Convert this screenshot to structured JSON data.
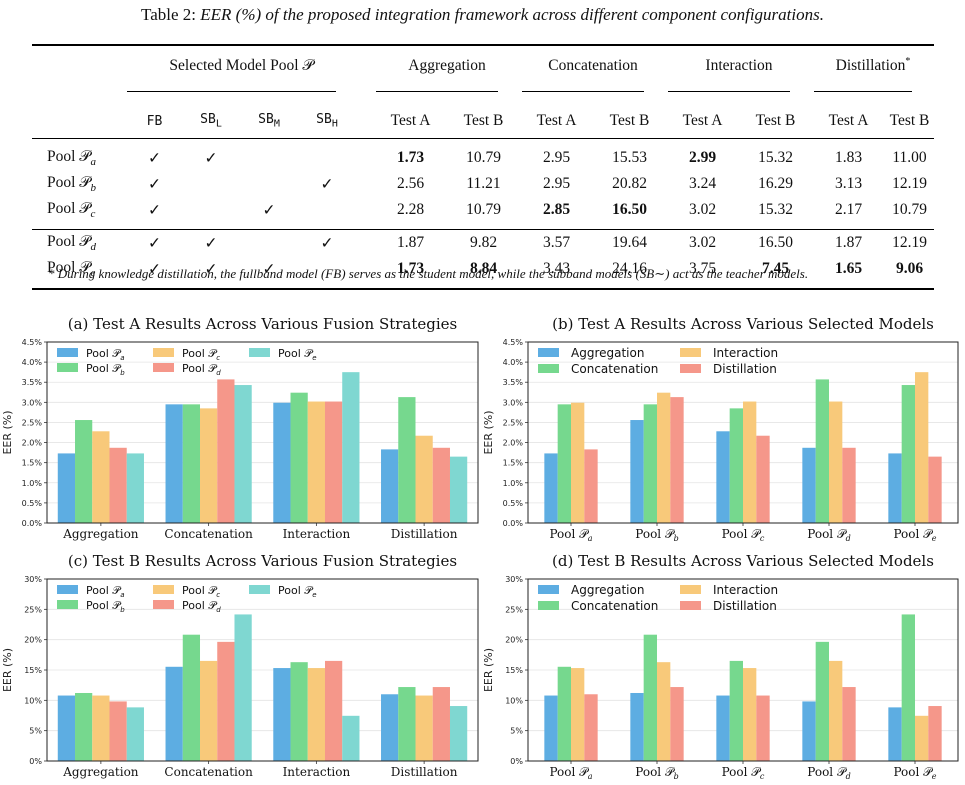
{
  "caption": {
    "label": "Table 2:",
    "text": "EER (%) of the proposed integration framework across different component configurations."
  },
  "table": {
    "pool_header": "Selected Model Pool 𝒫",
    "group_headers": [
      "Aggregation",
      "Concatenation",
      "Interaction",
      "Distillation"
    ],
    "distillation_mark": "*",
    "model_cols": [
      "FB",
      "SBL",
      "SBM",
      "SBH"
    ],
    "model_cols_display": [
      {
        "base": "FB",
        "sub": ""
      },
      {
        "base": "SB",
        "sub": "L"
      },
      {
        "base": "SB",
        "sub": "M"
      },
      {
        "base": "SB",
        "sub": "H"
      }
    ],
    "test_cols": [
      "Test A",
      "Test B",
      "Test A",
      "Test B",
      "Test A",
      "Test B",
      "Test A",
      "Test B"
    ],
    "check": "✓",
    "rows": [
      {
        "name": "Pool 𝒫",
        "sub": "a",
        "checks": [
          true,
          true,
          false,
          false
        ],
        "values": [
          "1.73",
          "10.79",
          "2.95",
          "15.53",
          "2.99",
          "15.32",
          "1.83",
          "11.00"
        ],
        "bold": [
          true,
          false,
          false,
          false,
          true,
          false,
          false,
          false
        ]
      },
      {
        "name": "Pool 𝒫",
        "sub": "b",
        "checks": [
          true,
          false,
          false,
          true
        ],
        "values": [
          "2.56",
          "11.21",
          "2.95",
          "20.82",
          "3.24",
          "16.29",
          "3.13",
          "12.19"
        ],
        "bold": [
          false,
          false,
          false,
          false,
          false,
          false,
          false,
          false
        ]
      },
      {
        "name": "Pool 𝒫",
        "sub": "c",
        "checks": [
          true,
          false,
          true,
          false
        ],
        "values": [
          "2.28",
          "10.79",
          "2.85",
          "16.50",
          "3.02",
          "15.32",
          "2.17",
          "10.79"
        ],
        "bold": [
          false,
          false,
          true,
          true,
          false,
          false,
          false,
          false
        ]
      },
      {
        "name": "Pool 𝒫",
        "sub": "d",
        "checks": [
          true,
          true,
          false,
          true
        ],
        "values": [
          "1.87",
          "9.82",
          "3.57",
          "19.64",
          "3.02",
          "16.50",
          "1.87",
          "12.19"
        ],
        "bold": [
          false,
          false,
          false,
          false,
          false,
          false,
          false,
          false
        ]
      },
      {
        "name": "Pool 𝒫",
        "sub": "e",
        "checks": [
          true,
          true,
          true,
          false
        ],
        "values": [
          "1.73",
          "8.84",
          "3.43",
          "24.16",
          "3.75",
          "7.45",
          "1.65",
          "9.06"
        ],
        "bold": [
          true,
          true,
          false,
          false,
          false,
          true,
          true,
          true
        ]
      }
    ]
  },
  "footnote": "* During knowledge distillation, the fullband model (FB) serves as the student model, while the subband models (SB∼) act as the teacher models.",
  "colors": {
    "pool_a": "#5dade2",
    "pool_b": "#76d88e",
    "pool_c": "#f8c97a",
    "pool_d": "#f5978a",
    "pool_e": "#7fd7d1",
    "aggregation": "#5dade2",
    "concatenation": "#76d88e",
    "interaction": "#f8c97a",
    "distillation": "#f5978a"
  },
  "chart_data": [
    {
      "type": "bar",
      "title": "(a) Test A Results Across Various Fusion Strategies",
      "ylabel": "EER (%)",
      "ylim": [
        0,
        4.5
      ],
      "yticks": [
        "0.0%",
        "0.5%",
        "1.0%",
        "1.5%",
        "2.0%",
        "2.5%",
        "3.0%",
        "3.5%",
        "4.0%",
        "4.5%"
      ],
      "categories": [
        "Aggregation",
        "Concatenation",
        "Interaction",
        "Distillation"
      ],
      "legend_position": "top-left",
      "series": [
        {
          "name": "Pool 𝒫",
          "sub": "a",
          "values": [
            1.73,
            2.95,
            2.99,
            1.83
          ]
        },
        {
          "name": "Pool 𝒫",
          "sub": "b",
          "values": [
            2.56,
            2.95,
            3.24,
            3.13
          ]
        },
        {
          "name": "Pool 𝒫",
          "sub": "c",
          "values": [
            2.28,
            2.85,
            3.02,
            2.17
          ]
        },
        {
          "name": "Pool 𝒫",
          "sub": "d",
          "values": [
            1.87,
            3.57,
            3.02,
            1.87
          ]
        },
        {
          "name": "Pool 𝒫",
          "sub": "e",
          "values": [
            1.73,
            3.43,
            3.75,
            1.65
          ]
        }
      ]
    },
    {
      "type": "bar",
      "title": "(b) Test A Results Across Various Selected Models",
      "ylabel": "EER (%)",
      "ylim": [
        0,
        4.5
      ],
      "yticks": [
        "0.0%",
        "0.5%",
        "1.0%",
        "1.5%",
        "2.0%",
        "2.5%",
        "3.0%",
        "3.5%",
        "4.0%",
        "4.5%"
      ],
      "categories": [
        "Pool 𝒫a",
        "Pool 𝒫b",
        "Pool 𝒫c",
        "Pool 𝒫d",
        "Pool 𝒫e"
      ],
      "legend_position": "top-left",
      "series": [
        {
          "name": "Aggregation",
          "values": [
            1.73,
            2.56,
            2.28,
            1.87,
            1.73
          ]
        },
        {
          "name": "Concatenation",
          "values": [
            2.95,
            2.95,
            2.85,
            3.57,
            3.43
          ]
        },
        {
          "name": "Interaction",
          "values": [
            2.99,
            3.24,
            3.02,
            3.02,
            3.75
          ]
        },
        {
          "name": "Distillation",
          "values": [
            1.83,
            3.13,
            2.17,
            1.87,
            1.65
          ]
        }
      ]
    },
    {
      "type": "bar",
      "title": "(c) Test B Results Across Various Fusion Strategies",
      "ylabel": "EER (%)",
      "ylim": [
        0,
        30
      ],
      "yticks": [
        "0%",
        "5%",
        "10%",
        "15%",
        "20%",
        "25%",
        "30%"
      ],
      "categories": [
        "Aggregation",
        "Concatenation",
        "Interaction",
        "Distillation"
      ],
      "legend_position": "top-left",
      "series": [
        {
          "name": "Pool 𝒫",
          "sub": "a",
          "values": [
            10.79,
            15.53,
            15.32,
            11.0
          ]
        },
        {
          "name": "Pool 𝒫",
          "sub": "b",
          "values": [
            11.21,
            20.82,
            16.29,
            12.19
          ]
        },
        {
          "name": "Pool 𝒫",
          "sub": "c",
          "values": [
            10.79,
            16.5,
            15.32,
            10.79
          ]
        },
        {
          "name": "Pool 𝒫",
          "sub": "d",
          "values": [
            9.82,
            19.64,
            16.5,
            12.19
          ]
        },
        {
          "name": "Pool 𝒫",
          "sub": "e",
          "values": [
            8.84,
            24.16,
            7.45,
            9.06
          ]
        }
      ]
    },
    {
      "type": "bar",
      "title": "(d) Test B Results Across Various Selected Models",
      "ylabel": "EER (%)",
      "ylim": [
        0,
        30
      ],
      "yticks": [
        "0%",
        "5%",
        "10%",
        "15%",
        "20%",
        "25%",
        "30%"
      ],
      "categories": [
        "Pool 𝒫a",
        "Pool 𝒫b",
        "Pool 𝒫c",
        "Pool 𝒫d",
        "Pool 𝒫e"
      ],
      "legend_position": "top-left",
      "series": [
        {
          "name": "Aggregation",
          "values": [
            10.79,
            11.21,
            10.79,
            9.82,
            8.84
          ]
        },
        {
          "name": "Concatenation",
          "values": [
            15.53,
            20.82,
            16.5,
            19.64,
            24.16
          ]
        },
        {
          "name": "Interaction",
          "values": [
            15.32,
            16.29,
            15.32,
            16.5,
            7.45
          ]
        },
        {
          "name": "Distillation",
          "values": [
            11.0,
            12.19,
            10.79,
            12.19,
            9.06
          ]
        }
      ]
    }
  ]
}
